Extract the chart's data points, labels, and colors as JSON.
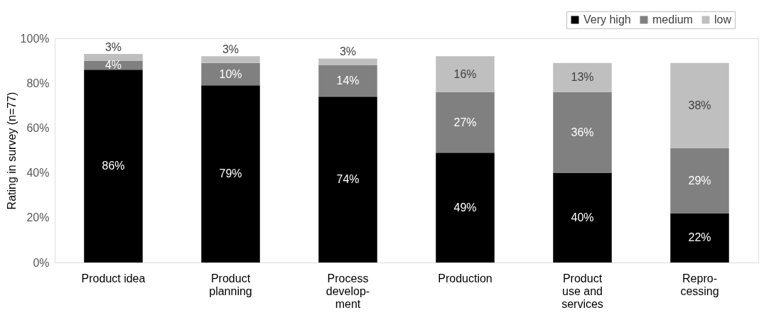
{
  "chart_data": {
    "type": "bar",
    "stacked": true,
    "ylabel": "Rating in survey (n=77)",
    "categories": [
      "Product idea",
      "Product\nplanning",
      "Process\ndevelop-\nment",
      "Production",
      "Product\nuse and\nservices",
      "Repro-\ncessing"
    ],
    "series": [
      {
        "name": "Very high",
        "color": "#000000",
        "values": [
          86,
          79,
          74,
          49,
          40,
          22
        ],
        "value_labels": [
          "86%",
          "79%",
          "74%",
          "49%",
          "40%",
          "22%"
        ]
      },
      {
        "name": "medium",
        "color": "#808080",
        "values": [
          4,
          10,
          14,
          27,
          36,
          29
        ],
        "value_labels": [
          "4%",
          "10%",
          "14%",
          "27%",
          "36%",
          "29%"
        ]
      },
      {
        "name": "low",
        "color": "#bfbfbf",
        "values": [
          3,
          3,
          3,
          16,
          13,
          38
        ],
        "value_labels": [
          "3%",
          "3%",
          "3%",
          "16%",
          "13%",
          "38%"
        ]
      }
    ],
    "ylim": [
      0,
      100
    ],
    "yticks": [
      {
        "value": 0,
        "label": "0%"
      },
      {
        "value": 20,
        "label": "20%"
      },
      {
        "value": 40,
        "label": "40%"
      },
      {
        "value": 60,
        "label": "60%"
      },
      {
        "value": 80,
        "label": "80%"
      },
      {
        "value": 100,
        "label": "100%"
      }
    ],
    "grid": false,
    "legend": "top right"
  }
}
